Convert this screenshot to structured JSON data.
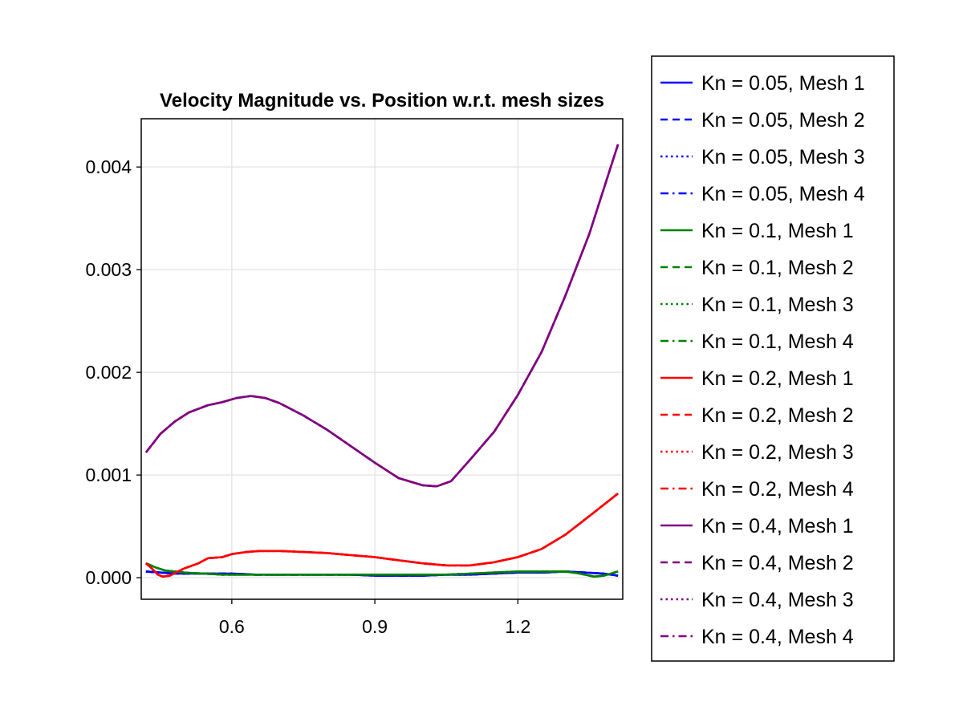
{
  "chart_data": {
    "type": "line",
    "title": "Velocity Magnitude vs. Position w.r.t. mesh sizes",
    "xlabel": "",
    "ylabel": "",
    "xlim": [
      0.41,
      1.42
    ],
    "ylim": [
      -0.00021,
      0.00447
    ],
    "xticks": [
      0.6,
      0.9,
      1.2
    ],
    "xtick_labels": [
      "0.6",
      "0.9",
      "1.2"
    ],
    "yticks": [
      0.0,
      0.001,
      0.002,
      0.003,
      0.004
    ],
    "ytick_labels": [
      "0.000",
      "0.001",
      "0.002",
      "0.003",
      "0.004"
    ],
    "grid": true,
    "legend_position": "outside-right",
    "colors": {
      "Kn = 0.05": "#0000ff",
      "Kn = 0.1": "#008000",
      "Kn = 0.2": "#ff0000",
      "Kn = 0.4": "#800080"
    },
    "series": [
      {
        "name": "Kn = 0.05, Mesh 1",
        "color": "#0000ff",
        "dash": "solid",
        "x": [
          0.42,
          0.45,
          0.48,
          0.52,
          0.56,
          0.6,
          0.65,
          0.7,
          0.75,
          0.8,
          0.85,
          0.9,
          0.95,
          1.0,
          1.05,
          1.1,
          1.15,
          1.2,
          1.25,
          1.3,
          1.34,
          1.38,
          1.41
        ],
        "y": [
          6e-05,
          5e-05,
          4e-05,
          4e-05,
          4e-05,
          4e-05,
          3e-05,
          3e-05,
          3e-05,
          3e-05,
          3e-05,
          2e-05,
          2e-05,
          2e-05,
          3e-05,
          3e-05,
          4e-05,
          5e-05,
          5e-05,
          6e-05,
          5e-05,
          4e-05,
          2e-05
        ]
      },
      {
        "name": "Kn = 0.05, Mesh 2",
        "color": "#0000ff",
        "dash": "dash",
        "x": [
          0.42,
          0.45,
          0.48,
          0.52,
          0.56,
          0.6,
          0.65,
          0.7,
          0.75,
          0.8,
          0.85,
          0.9,
          0.95,
          1.0,
          1.05,
          1.1,
          1.15,
          1.2,
          1.25,
          1.3,
          1.34,
          1.38,
          1.41
        ],
        "y": [
          6e-05,
          5e-05,
          4e-05,
          4e-05,
          4e-05,
          4e-05,
          3e-05,
          3e-05,
          3e-05,
          3e-05,
          3e-05,
          2e-05,
          2e-05,
          2e-05,
          3e-05,
          3e-05,
          4e-05,
          5e-05,
          5e-05,
          6e-05,
          5e-05,
          4e-05,
          2e-05
        ]
      },
      {
        "name": "Kn = 0.05, Mesh 3",
        "color": "#0000ff",
        "dash": "dot",
        "x": [
          0.42,
          0.45,
          0.48,
          0.52,
          0.56,
          0.6,
          0.65,
          0.7,
          0.75,
          0.8,
          0.85,
          0.9,
          0.95,
          1.0,
          1.05,
          1.1,
          1.15,
          1.2,
          1.25,
          1.3,
          1.34,
          1.38,
          1.41
        ],
        "y": [
          6e-05,
          5e-05,
          4e-05,
          4e-05,
          4e-05,
          4e-05,
          3e-05,
          3e-05,
          3e-05,
          3e-05,
          3e-05,
          2e-05,
          2e-05,
          2e-05,
          3e-05,
          3e-05,
          4e-05,
          5e-05,
          5e-05,
          6e-05,
          5e-05,
          4e-05,
          2e-05
        ]
      },
      {
        "name": "Kn = 0.05, Mesh 4",
        "color": "#0000ff",
        "dash": "dashdot",
        "x": [
          0.42,
          0.45,
          0.48,
          0.52,
          0.56,
          0.6,
          0.65,
          0.7,
          0.75,
          0.8,
          0.85,
          0.9,
          0.95,
          1.0,
          1.05,
          1.1,
          1.15,
          1.2,
          1.25,
          1.3,
          1.34,
          1.38,
          1.41
        ],
        "y": [
          6e-05,
          5e-05,
          4e-05,
          4e-05,
          4e-05,
          4e-05,
          3e-05,
          3e-05,
          3e-05,
          3e-05,
          3e-05,
          2e-05,
          2e-05,
          2e-05,
          3e-05,
          3e-05,
          4e-05,
          5e-05,
          5e-05,
          6e-05,
          5e-05,
          4e-05,
          2e-05
        ]
      },
      {
        "name": "Kn = 0.1, Mesh 1",
        "color": "#008000",
        "dash": "solid",
        "x": [
          0.42,
          0.44,
          0.46,
          0.48,
          0.5,
          0.54,
          0.58,
          0.62,
          0.66,
          0.7,
          0.75,
          0.8,
          0.85,
          0.9,
          0.95,
          1.0,
          1.05,
          1.1,
          1.15,
          1.2,
          1.25,
          1.3,
          1.33,
          1.36,
          1.38,
          1.41
        ],
        "y": [
          0.00014,
          0.0001,
          7e-05,
          6e-05,
          5e-05,
          4e-05,
          3e-05,
          3e-05,
          3e-05,
          3e-05,
          3e-05,
          3e-05,
          3e-05,
          3e-05,
          3e-05,
          3e-05,
          3e-05,
          4e-05,
          5e-05,
          6e-05,
          6e-05,
          6e-05,
          4e-05,
          1e-05,
          2e-05,
          6e-05
        ]
      },
      {
        "name": "Kn = 0.1, Mesh 2",
        "color": "#008000",
        "dash": "dash",
        "x": [
          0.42,
          0.44,
          0.46,
          0.48,
          0.5,
          0.54,
          0.58,
          0.62,
          0.66,
          0.7,
          0.75,
          0.8,
          0.85,
          0.9,
          0.95,
          1.0,
          1.05,
          1.1,
          1.15,
          1.2,
          1.25,
          1.3,
          1.33,
          1.36,
          1.38,
          1.41
        ],
        "y": [
          0.00014,
          0.0001,
          7e-05,
          6e-05,
          5e-05,
          4e-05,
          3e-05,
          3e-05,
          3e-05,
          3e-05,
          3e-05,
          3e-05,
          3e-05,
          3e-05,
          3e-05,
          3e-05,
          3e-05,
          4e-05,
          5e-05,
          6e-05,
          6e-05,
          6e-05,
          4e-05,
          1e-05,
          2e-05,
          6e-05
        ]
      },
      {
        "name": "Kn = 0.1, Mesh 3",
        "color": "#008000",
        "dash": "dot",
        "x": [
          0.42,
          0.44,
          0.46,
          0.48,
          0.5,
          0.54,
          0.58,
          0.62,
          0.66,
          0.7,
          0.75,
          0.8,
          0.85,
          0.9,
          0.95,
          1.0,
          1.05,
          1.1,
          1.15,
          1.2,
          1.25,
          1.3,
          1.33,
          1.36,
          1.38,
          1.41
        ],
        "y": [
          0.00014,
          0.0001,
          7e-05,
          6e-05,
          5e-05,
          4e-05,
          3e-05,
          3e-05,
          3e-05,
          3e-05,
          3e-05,
          3e-05,
          3e-05,
          3e-05,
          3e-05,
          3e-05,
          3e-05,
          4e-05,
          5e-05,
          6e-05,
          6e-05,
          6e-05,
          4e-05,
          1e-05,
          2e-05,
          6e-05
        ]
      },
      {
        "name": "Kn = 0.1, Mesh 4",
        "color": "#008000",
        "dash": "dashdot",
        "x": [
          0.42,
          0.44,
          0.46,
          0.48,
          0.5,
          0.54,
          0.58,
          0.62,
          0.66,
          0.7,
          0.75,
          0.8,
          0.85,
          0.9,
          0.95,
          1.0,
          1.05,
          1.1,
          1.15,
          1.2,
          1.25,
          1.3,
          1.33,
          1.36,
          1.38,
          1.41
        ],
        "y": [
          0.00014,
          0.0001,
          7e-05,
          6e-05,
          5e-05,
          4e-05,
          3e-05,
          3e-05,
          3e-05,
          3e-05,
          3e-05,
          3e-05,
          3e-05,
          3e-05,
          3e-05,
          3e-05,
          3e-05,
          4e-05,
          5e-05,
          6e-05,
          6e-05,
          6e-05,
          4e-05,
          1e-05,
          2e-05,
          6e-05
        ]
      },
      {
        "name": "Kn = 0.2, Mesh 1",
        "color": "#ff0000",
        "dash": "solid",
        "x": [
          0.42,
          0.43,
          0.445,
          0.455,
          0.47,
          0.5,
          0.53,
          0.55,
          0.58,
          0.6,
          0.63,
          0.66,
          0.7,
          0.75,
          0.8,
          0.85,
          0.9,
          0.95,
          1.0,
          1.05,
          1.1,
          1.15,
          1.2,
          1.25,
          1.3,
          1.35,
          1.41
        ],
        "y": [
          0.00014,
          0.0001,
          3e-05,
          1e-05,
          2e-05,
          9e-05,
          0.00014,
          0.00019,
          0.0002,
          0.00023,
          0.00025,
          0.00026,
          0.00026,
          0.00025,
          0.00024,
          0.00022,
          0.0002,
          0.00017,
          0.00014,
          0.00012,
          0.00012,
          0.00015,
          0.0002,
          0.00028,
          0.00042,
          0.0006,
          0.00082
        ]
      },
      {
        "name": "Kn = 0.2, Mesh 2",
        "color": "#ff0000",
        "dash": "dash",
        "x": [
          0.42,
          0.43,
          0.445,
          0.455,
          0.47,
          0.5,
          0.53,
          0.55,
          0.58,
          0.6,
          0.63,
          0.66,
          0.7,
          0.75,
          0.8,
          0.85,
          0.9,
          0.95,
          1.0,
          1.05,
          1.1,
          1.15,
          1.2,
          1.25,
          1.3,
          1.35,
          1.41
        ],
        "y": [
          0.00014,
          0.0001,
          3e-05,
          1e-05,
          2e-05,
          9e-05,
          0.00014,
          0.00019,
          0.0002,
          0.00023,
          0.00025,
          0.00026,
          0.00026,
          0.00025,
          0.00024,
          0.00022,
          0.0002,
          0.00017,
          0.00014,
          0.00012,
          0.00012,
          0.00015,
          0.0002,
          0.00028,
          0.00042,
          0.0006,
          0.00082
        ]
      },
      {
        "name": "Kn = 0.2, Mesh 3",
        "color": "#ff0000",
        "dash": "dot",
        "x": [
          0.42,
          0.43,
          0.445,
          0.455,
          0.47,
          0.5,
          0.53,
          0.55,
          0.58,
          0.6,
          0.63,
          0.66,
          0.7,
          0.75,
          0.8,
          0.85,
          0.9,
          0.95,
          1.0,
          1.05,
          1.1,
          1.15,
          1.2,
          1.25,
          1.3,
          1.35,
          1.41
        ],
        "y": [
          0.00014,
          0.0001,
          3e-05,
          1e-05,
          2e-05,
          9e-05,
          0.00014,
          0.00019,
          0.0002,
          0.00023,
          0.00025,
          0.00026,
          0.00026,
          0.00025,
          0.00024,
          0.00022,
          0.0002,
          0.00017,
          0.00014,
          0.00012,
          0.00012,
          0.00015,
          0.0002,
          0.00028,
          0.00042,
          0.0006,
          0.00082
        ]
      },
      {
        "name": "Kn = 0.2, Mesh 4",
        "color": "#ff0000",
        "dash": "dashdot",
        "x": [
          0.42,
          0.43,
          0.445,
          0.455,
          0.47,
          0.5,
          0.53,
          0.55,
          0.58,
          0.6,
          0.63,
          0.66,
          0.7,
          0.75,
          0.8,
          0.85,
          0.9,
          0.95,
          1.0,
          1.05,
          1.1,
          1.15,
          1.2,
          1.25,
          1.3,
          1.35,
          1.41
        ],
        "y": [
          0.00014,
          0.0001,
          3e-05,
          1e-05,
          2e-05,
          9e-05,
          0.00014,
          0.00019,
          0.0002,
          0.00023,
          0.00025,
          0.00026,
          0.00026,
          0.00025,
          0.00024,
          0.00022,
          0.0002,
          0.00017,
          0.00014,
          0.00012,
          0.00012,
          0.00015,
          0.0002,
          0.00028,
          0.00042,
          0.0006,
          0.00082
        ]
      },
      {
        "name": "Kn = 0.4, Mesh 1",
        "color": "#800080",
        "dash": "solid",
        "x": [
          0.42,
          0.45,
          0.48,
          0.51,
          0.55,
          0.58,
          0.61,
          0.64,
          0.67,
          0.7,
          0.75,
          0.8,
          0.85,
          0.9,
          0.95,
          1.0,
          1.03,
          1.06,
          1.1,
          1.15,
          1.2,
          1.25,
          1.3,
          1.35,
          1.41
        ],
        "y": [
          0.00122,
          0.0014,
          0.00152,
          0.00161,
          0.00168,
          0.00171,
          0.00175,
          0.00177,
          0.00175,
          0.0017,
          0.00158,
          0.00144,
          0.00128,
          0.00112,
          0.00097,
          0.0009,
          0.00089,
          0.00094,
          0.00115,
          0.00142,
          0.00178,
          0.0022,
          0.00275,
          0.00335,
          0.00422
        ]
      },
      {
        "name": "Kn = 0.4, Mesh 2",
        "color": "#800080",
        "dash": "dash",
        "x": [
          0.42,
          0.45,
          0.48,
          0.51,
          0.55,
          0.58,
          0.61,
          0.64,
          0.67,
          0.7,
          0.75,
          0.8,
          0.85,
          0.9,
          0.95,
          1.0,
          1.03,
          1.06,
          1.1,
          1.15,
          1.2,
          1.25,
          1.3,
          1.35,
          1.41
        ],
        "y": [
          0.00122,
          0.0014,
          0.00152,
          0.00161,
          0.00168,
          0.00171,
          0.00175,
          0.00177,
          0.00175,
          0.0017,
          0.00158,
          0.00144,
          0.00128,
          0.00112,
          0.00097,
          0.0009,
          0.00089,
          0.00094,
          0.00115,
          0.00142,
          0.00178,
          0.0022,
          0.00275,
          0.00335,
          0.00422
        ]
      },
      {
        "name": "Kn = 0.4, Mesh 3",
        "color": "#800080",
        "dash": "dot",
        "x": [
          0.42,
          0.45,
          0.48,
          0.51,
          0.55,
          0.58,
          0.61,
          0.64,
          0.67,
          0.7,
          0.75,
          0.8,
          0.85,
          0.9,
          0.95,
          1.0,
          1.03,
          1.06,
          1.1,
          1.15,
          1.2,
          1.25,
          1.3,
          1.35,
          1.41
        ],
        "y": [
          0.00122,
          0.0014,
          0.00152,
          0.00161,
          0.00168,
          0.00171,
          0.00175,
          0.00177,
          0.00175,
          0.0017,
          0.00158,
          0.00144,
          0.00128,
          0.00112,
          0.00097,
          0.0009,
          0.00089,
          0.00094,
          0.00115,
          0.00142,
          0.00178,
          0.0022,
          0.00275,
          0.00335,
          0.00422
        ]
      },
      {
        "name": "Kn = 0.4, Mesh 4",
        "color": "#800080",
        "dash": "dashdot",
        "x": [
          0.42,
          0.45,
          0.48,
          0.51,
          0.55,
          0.58,
          0.61,
          0.64,
          0.67,
          0.7,
          0.75,
          0.8,
          0.85,
          0.9,
          0.95,
          1.0,
          1.03,
          1.06,
          1.1,
          1.15,
          1.2,
          1.25,
          1.3,
          1.35,
          1.41
        ],
        "y": [
          0.00122,
          0.0014,
          0.00152,
          0.00161,
          0.00168,
          0.00171,
          0.00175,
          0.00177,
          0.00175,
          0.0017,
          0.00158,
          0.00144,
          0.00128,
          0.00112,
          0.00097,
          0.0009,
          0.00089,
          0.00094,
          0.00115,
          0.00142,
          0.00178,
          0.0022,
          0.00275,
          0.00335,
          0.00422
        ]
      }
    ]
  }
}
